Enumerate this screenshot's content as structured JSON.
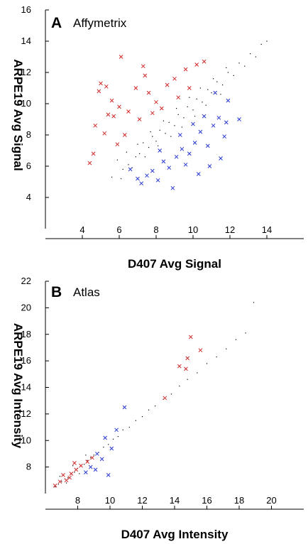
{
  "chart_data": [
    {
      "type": "scatter",
      "panel_letter": "A",
      "title": "Affymetrix",
      "xlabel": "D407 Avg Signal",
      "ylabel": "ARPE19 Avg Signal",
      "xlim": [
        2,
        16
      ],
      "ylim": [
        2,
        16
      ],
      "xticks": [
        4,
        6,
        8,
        10,
        12,
        14
      ],
      "yticks": [
        4,
        6,
        8,
        10,
        12,
        14,
        16
      ],
      "grid": false,
      "series": [
        {
          "color": "#000000",
          "marker": "dot",
          "points": [
            [
              6.2,
              5.8
            ],
            [
              6.5,
              6.1
            ],
            [
              6.9,
              6.6
            ],
            [
              7.1,
              6.8
            ],
            [
              7.3,
              7.5
            ],
            [
              7.6,
              7.2
            ],
            [
              7.8,
              7.9
            ],
            [
              8.0,
              7.6
            ],
            [
              8.2,
              8.3
            ],
            [
              8.5,
              8.1
            ],
            [
              8.7,
              8.8
            ],
            [
              9.0,
              8.6
            ],
            [
              9.2,
              9.3
            ],
            [
              9.5,
              9.1
            ],
            [
              9.7,
              9.8
            ],
            [
              10.0,
              9.6
            ],
            [
              10.2,
              10.3
            ],
            [
              10.5,
              10.1
            ],
            [
              10.8,
              10.9
            ],
            [
              11.0,
              10.7
            ],
            [
              11.3,
              11.4
            ],
            [
              11.6,
              11.2
            ],
            [
              11.9,
              12.0
            ],
            [
              12.2,
              11.8
            ],
            [
              12.5,
              12.6
            ],
            [
              12.8,
              12.4
            ],
            [
              13.1,
              13.2
            ],
            [
              13.4,
              13.0
            ],
            [
              13.7,
              13.8
            ],
            [
              14.0,
              14.0
            ],
            [
              5.6,
              5.3
            ],
            [
              5.9,
              6.4
            ],
            [
              6.1,
              5.2
            ],
            [
              6.4,
              6.9
            ],
            [
              6.7,
              5.9
            ],
            [
              7.0,
              7.4
            ],
            [
              7.4,
              6.6
            ],
            [
              7.7,
              8.2
            ],
            [
              8.1,
              7.3
            ],
            [
              8.4,
              8.9
            ],
            [
              8.8,
              7.9
            ],
            [
              9.1,
              9.7
            ],
            [
              9.4,
              8.5
            ],
            [
              9.8,
              10.4
            ],
            [
              10.1,
              9.2
            ],
            [
              10.4,
              11.0
            ],
            [
              10.7,
              9.9
            ],
            [
              11.1,
              11.6
            ],
            [
              11.5,
              10.6
            ],
            [
              11.8,
              12.3
            ]
          ]
        },
        {
          "color": "#d02a2a",
          "marker": "x",
          "points": [
            [
              6.1,
              13.0
            ],
            [
              7.3,
              12.4
            ],
            [
              5.0,
              11.3
            ],
            [
              5.3,
              11.1
            ],
            [
              4.9,
              10.8
            ],
            [
              6.9,
              11.0
            ],
            [
              7.6,
              10.7
            ],
            [
              5.6,
              10.2
            ],
            [
              6.0,
              9.8
            ],
            [
              6.5,
              9.5
            ],
            [
              5.4,
              9.3
            ],
            [
              5.7,
              9.2
            ],
            [
              7.1,
              9.0
            ],
            [
              4.7,
              8.6
            ],
            [
              5.2,
              8.1
            ],
            [
              6.3,
              8.0
            ],
            [
              4.4,
              6.2
            ],
            [
              4.6,
              6.8
            ],
            [
              5.9,
              7.4
            ],
            [
              7.4,
              11.8
            ],
            [
              8.0,
              10.1
            ],
            [
              8.6,
              11.2
            ],
            [
              9.0,
              11.6
            ],
            [
              9.6,
              12.2
            ],
            [
              10.2,
              12.5
            ],
            [
              10.6,
              12.7
            ],
            [
              8.3,
              9.7
            ],
            [
              9.2,
              10.4
            ],
            [
              9.8,
              11.0
            ],
            [
              7.8,
              9.4
            ]
          ]
        },
        {
          "color": "#2a3ad0",
          "marker": "x",
          "points": [
            [
              7.2,
              4.9
            ],
            [
              7.5,
              5.4
            ],
            [
              6.6,
              5.8
            ],
            [
              7.8,
              5.7
            ],
            [
              8.1,
              5.1
            ],
            [
              8.4,
              6.3
            ],
            [
              8.7,
              5.9
            ],
            [
              9.1,
              6.6
            ],
            [
              9.4,
              7.1
            ],
            [
              9.8,
              6.8
            ],
            [
              10.1,
              7.5
            ],
            [
              10.4,
              8.2
            ],
            [
              10.8,
              7.3
            ],
            [
              11.1,
              8.6
            ],
            [
              11.4,
              9.1
            ],
            [
              11.7,
              7.9
            ],
            [
              11.9,
              10.2
            ],
            [
              12.5,
              9.0
            ],
            [
              11.5,
              6.5
            ],
            [
              10.9,
              6.0
            ],
            [
              10.3,
              5.5
            ],
            [
              9.6,
              6.1
            ],
            [
              8.9,
              4.6
            ],
            [
              10.6,
              9.2
            ],
            [
              11.2,
              10.7
            ],
            [
              11.8,
              8.8
            ],
            [
              9.3,
              8.0
            ],
            [
              10.0,
              8.7
            ],
            [
              8.2,
              7.0
            ],
            [
              7.0,
              5.2
            ]
          ]
        }
      ]
    },
    {
      "type": "scatter",
      "panel_letter": "B",
      "title": "Atlas",
      "xlabel": "D407 Avg Intensity",
      "ylabel": "ARPE19 Avg Intensity",
      "xlim": [
        6,
        22
      ],
      "ylim": [
        6,
        22
      ],
      "xticks": [
        8,
        10,
        12,
        14,
        16,
        18,
        20
      ],
      "yticks": [
        8,
        10,
        12,
        14,
        16,
        18,
        20,
        22
      ],
      "grid": false,
      "series": [
        {
          "color": "#000000",
          "marker": "dot",
          "points": [
            [
              6.6,
              6.5
            ],
            [
              6.8,
              6.7
            ],
            [
              7.0,
              6.9
            ],
            [
              7.2,
              7.1
            ],
            [
              7.4,
              7.2
            ],
            [
              7.6,
              7.5
            ],
            [
              7.8,
              7.6
            ],
            [
              8.0,
              7.9
            ],
            [
              8.2,
              8.1
            ],
            [
              8.4,
              8.2
            ],
            [
              8.6,
              8.5
            ],
            [
              8.8,
              8.7
            ],
            [
              9.0,
              8.9
            ],
            [
              9.3,
              9.1
            ],
            [
              9.6,
              9.5
            ],
            [
              9.9,
              9.7
            ],
            [
              10.2,
              10.1
            ],
            [
              10.5,
              10.3
            ],
            [
              10.8,
              10.8
            ],
            [
              11.2,
              11.0
            ],
            [
              11.6,
              11.5
            ],
            [
              12.0,
              11.8
            ],
            [
              12.4,
              12.3
            ],
            [
              12.8,
              12.6
            ],
            [
              13.3,
              13.1
            ],
            [
              13.8,
              13.5
            ],
            [
              14.3,
              14.1
            ],
            [
              14.8,
              14.6
            ],
            [
              15.4,
              15.1
            ],
            [
              16.0,
              15.8
            ],
            [
              16.6,
              16.3
            ],
            [
              17.2,
              16.9
            ],
            [
              17.8,
              17.6
            ],
            [
              18.4,
              18.1
            ],
            [
              18.9,
              20.4
            ],
            [
              6.9,
              7.3
            ],
            [
              7.3,
              6.8
            ],
            [
              7.7,
              8.1
            ],
            [
              8.1,
              7.5
            ],
            [
              8.5,
              8.9
            ]
          ]
        },
        {
          "color": "#d02a2a",
          "marker": "x",
          "points": [
            [
              15.0,
              17.8
            ],
            [
              15.6,
              16.8
            ],
            [
              14.8,
              16.2
            ],
            [
              14.3,
              15.6
            ],
            [
              14.7,
              15.4
            ],
            [
              13.4,
              13.2
            ],
            [
              6.6,
              6.6
            ],
            [
              6.9,
              6.9
            ],
            [
              7.3,
              7.0
            ],
            [
              7.6,
              7.5
            ],
            [
              7.9,
              7.8
            ],
            [
              8.2,
              8.1
            ],
            [
              8.6,
              8.4
            ],
            [
              8.9,
              8.7
            ],
            [
              7.1,
              7.4
            ],
            [
              7.5,
              7.2
            ],
            [
              7.8,
              8.3
            ]
          ]
        },
        {
          "color": "#2a3ad0",
          "marker": "x",
          "points": [
            [
              10.9,
              12.5
            ],
            [
              10.4,
              10.8
            ],
            [
              9.7,
              10.2
            ],
            [
              10.1,
              9.4
            ],
            [
              9.2,
              9.0
            ],
            [
              9.5,
              8.6
            ],
            [
              8.8,
              8.0
            ],
            [
              9.9,
              7.4
            ],
            [
              9.1,
              7.8
            ],
            [
              8.5,
              7.6
            ]
          ]
        }
      ]
    }
  ]
}
